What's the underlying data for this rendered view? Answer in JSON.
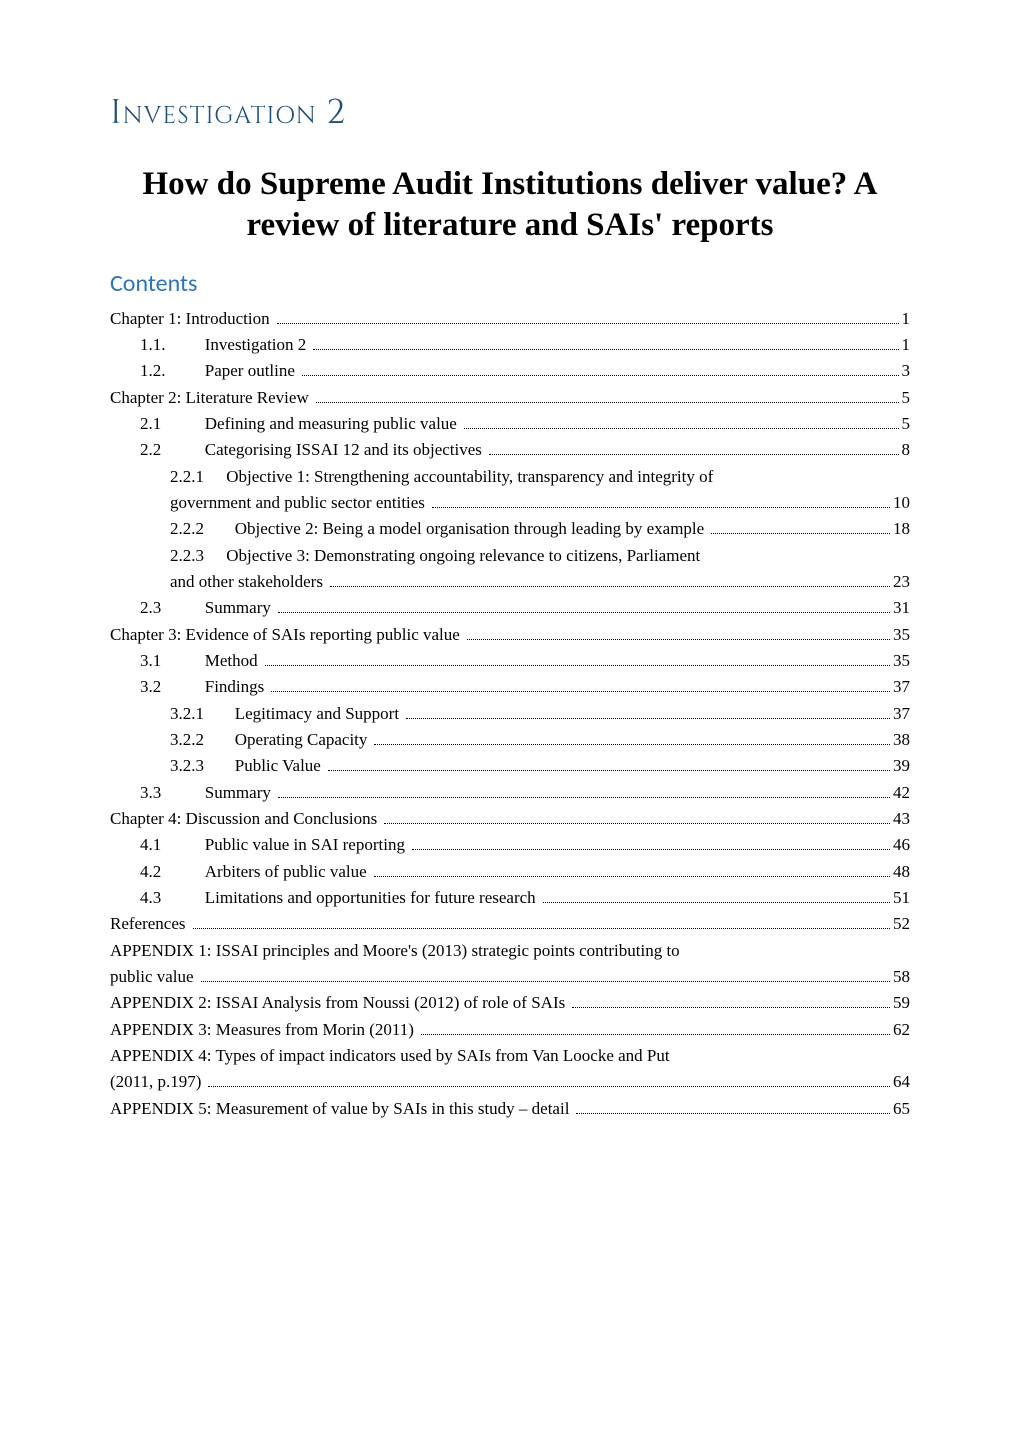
{
  "investigation_title": "Investigation 2",
  "main_title": "How do Supreme Audit Institutions deliver value? A review of literature and SAIs' reports",
  "contents_heading": "Contents",
  "colors": {
    "investigation_title": "#1f4e79",
    "contents_heading": "#2e74b5",
    "body_text": "#000000",
    "background": "#ffffff"
  },
  "typography": {
    "investigation_fontsize": 34,
    "main_title_fontsize": 33,
    "contents_fontsize": 24,
    "toc_fontsize": 17
  },
  "toc": [
    {
      "level": 0,
      "num": "",
      "label": "Chapter 1: Introduction",
      "page": "1"
    },
    {
      "level": 1,
      "num": "1.1.",
      "label": "Investigation 2",
      "page": "1"
    },
    {
      "level": 1,
      "num": "1.2.",
      "label": "Paper outline",
      "page": "3"
    },
    {
      "level": 0,
      "num": "",
      "label": "Chapter 2: Literature Review",
      "page": "5"
    },
    {
      "level": 1,
      "num": "2.1",
      "label": "Defining and measuring public value",
      "page": "5"
    },
    {
      "level": 1,
      "num": "2.2",
      "label": "Categorising ISSAI 12 and its objectives",
      "page": "8"
    },
    {
      "level": 2,
      "num": "2.2.1",
      "label_line1": "Objective 1: Strengthening accountability, transparency and integrity of",
      "label_line2": "government and public sector entities",
      "page": "10",
      "multi": true
    },
    {
      "level": 2,
      "num": "2.2.2",
      "label": "Objective 2: Being a model organisation through leading by example",
      "page": "18"
    },
    {
      "level": 2,
      "num": "2.2.3",
      "label_line1": "Objective 3: Demonstrating ongoing relevance to citizens, Parliament",
      "label_line2": "and other stakeholders",
      "page": "23",
      "multi": true
    },
    {
      "level": 1,
      "num": "2.3",
      "label": "Summary",
      "page": "31"
    },
    {
      "level": 0,
      "num": "",
      "label": "Chapter 3: Evidence of SAIs reporting public value",
      "page": "35"
    },
    {
      "level": 1,
      "num": "3.1",
      "label": "Method",
      "page": "35"
    },
    {
      "level": 1,
      "num": "3.2",
      "label": "Findings",
      "page": "37"
    },
    {
      "level": 2,
      "num": "3.2.1",
      "label": "Legitimacy and Support",
      "page": "37"
    },
    {
      "level": 2,
      "num": "3.2.2",
      "label": "Operating Capacity",
      "page": "38"
    },
    {
      "level": 2,
      "num": "3.2.3",
      "label": "Public Value",
      "page": "39"
    },
    {
      "level": 1,
      "num": "3.3",
      "label": "Summary",
      "page": "42"
    },
    {
      "level": 0,
      "num": "",
      "label": "Chapter 4: Discussion and Conclusions",
      "page": "43"
    },
    {
      "level": 1,
      "num": "4.1",
      "label": "Public value in SAI reporting",
      "page": "46"
    },
    {
      "level": 1,
      "num": "4.2",
      "label": "Arbiters of public value",
      "page": "48"
    },
    {
      "level": 1,
      "num": "4.3",
      "label": "Limitations and opportunities for future research",
      "page": "51"
    },
    {
      "level": 0,
      "num": "",
      "label": "References",
      "page": "52"
    },
    {
      "level": 0,
      "num": "",
      "label_line1": "APPENDIX 1: ISSAI principles and Moore's (2013) strategic points contributing to",
      "label_line2": "public value",
      "page": "58",
      "multi": true
    },
    {
      "level": 0,
      "num": "",
      "label": "APPENDIX 2: ISSAI Analysis from Noussi (2012) of role of SAIs",
      "page": "59"
    },
    {
      "level": 0,
      "num": "",
      "label": "APPENDIX 3: Measures from Morin (2011)",
      "page": "62"
    },
    {
      "level": 0,
      "num": "",
      "label_line1": "APPENDIX 4: Types of impact indicators used by SAIs from Van Loocke and Put",
      "label_line2": "(2011, p.197)",
      "page": "64",
      "multi": true
    },
    {
      "level": 0,
      "num": "",
      "label": "APPENDIX 5: Measurement of value by SAIs in this study – detail",
      "page": "65"
    }
  ]
}
